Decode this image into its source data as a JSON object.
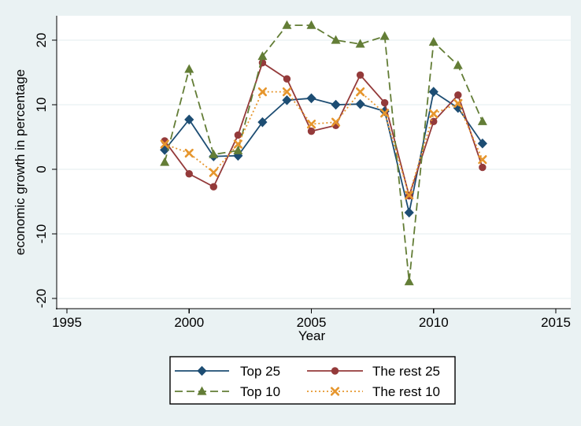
{
  "window": {
    "background_color": "#eaf2f3",
    "plot_background_color": "#ffffff",
    "gridline_color": "#e3edef"
  },
  "chart_data": {
    "type": "line",
    "title": "",
    "xlabel": "Year",
    "ylabel": "economic growth in percentage",
    "xlim": [
      1995,
      2015
    ],
    "ylim": [
      -20,
      20
    ],
    "grid": "horizontal-only",
    "legend_position": "bottom",
    "legend_columns": 2,
    "x_ticks": [
      1995,
      2000,
      2005,
      2010,
      2015
    ],
    "x_tick_labels": [
      "1995",
      "2000",
      "2005",
      "2010",
      "2015"
    ],
    "y_ticks": [
      -20,
      -10,
      0,
      10,
      20
    ],
    "y_tick_labels": [
      "-20",
      "-10",
      "0",
      "10",
      "20"
    ],
    "x": [
      1999,
      2000,
      2001,
      2002,
      2003,
      2004,
      2005,
      2006,
      2007,
      2008,
      2009,
      2010,
      2011,
      2012
    ],
    "series": [
      {
        "name": "Top 25",
        "color": "#1d4d73",
        "line_style": "solid",
        "marker": "diamond",
        "values": [
          3.0,
          7.7,
          2.0,
          2.1,
          7.3,
          10.7,
          11.0,
          10.0,
          10.1,
          9.0,
          -6.7,
          12.0,
          9.5,
          4.0
        ]
      },
      {
        "name": "The rest 25",
        "color": "#943a3a",
        "line_style": "solid",
        "marker": "circle",
        "values": [
          4.4,
          -0.7,
          -2.7,
          5.3,
          16.5,
          14.0,
          5.9,
          6.8,
          14.6,
          10.3,
          -4.1,
          7.4,
          11.5,
          0.3
        ]
      },
      {
        "name": "Top 10",
        "color": "#637d36",
        "line_style": "dashed",
        "marker": "triangle",
        "values": [
          1.1,
          15.5,
          2.3,
          2.9,
          17.5,
          22.3,
          22.3,
          20.0,
          19.4,
          20.6,
          -17.4,
          19.7,
          16.1,
          7.4
        ]
      },
      {
        "name": "The rest 10",
        "color": "#e6962d",
        "line_style": "dotted",
        "marker": "x",
        "values": [
          3.9,
          2.5,
          -0.5,
          3.9,
          12.0,
          12.0,
          7.0,
          7.3,
          12.0,
          8.7,
          -4.0,
          8.6,
          10.2,
          1.5
        ]
      }
    ]
  }
}
